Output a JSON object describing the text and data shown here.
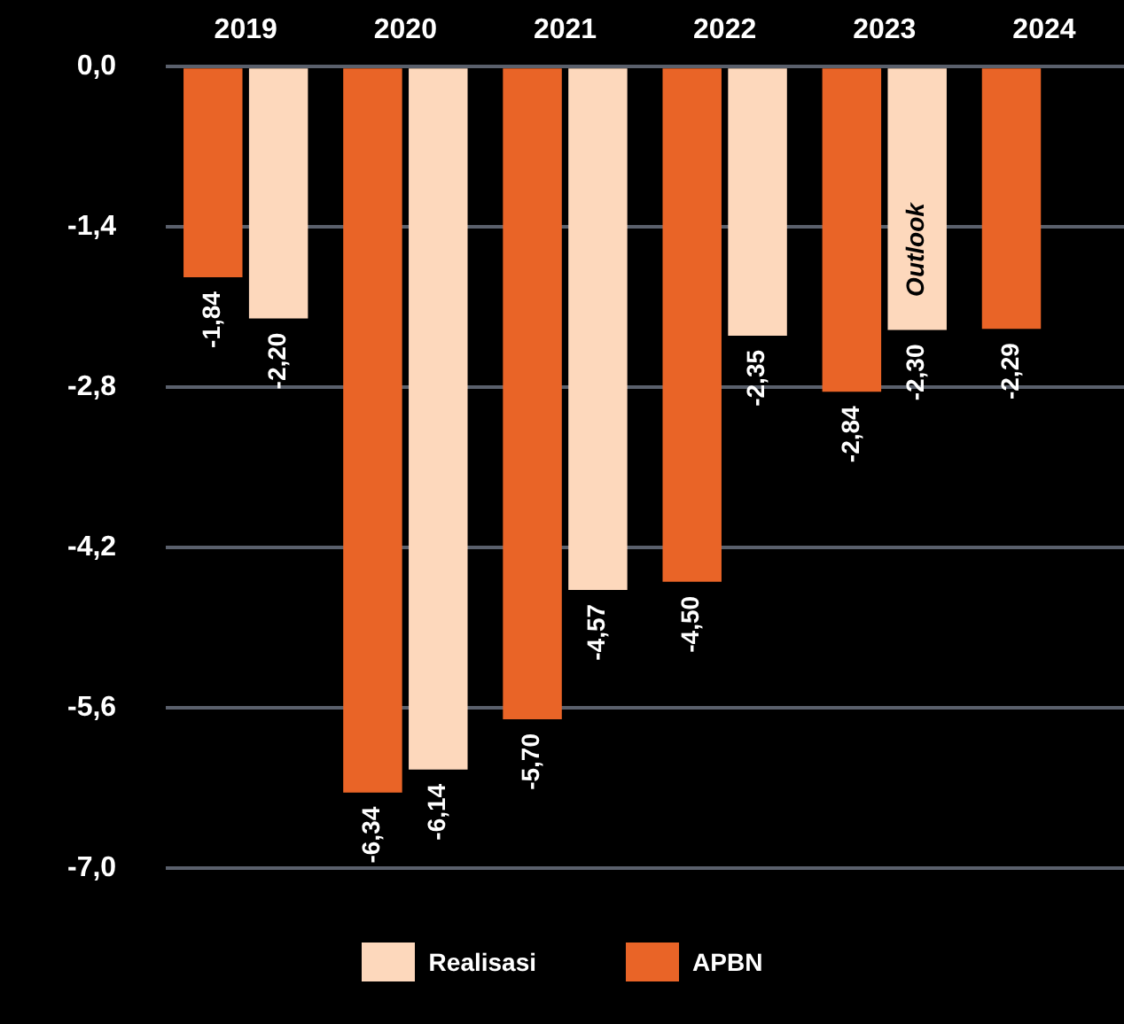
{
  "chart_data": {
    "type": "bar",
    "categories": [
      "2019",
      "2020",
      "2021",
      "2022",
      "2023",
      "2024"
    ],
    "series": [
      {
        "name": "APBN",
        "color": "#e96427",
        "values": [
          -1.84,
          -6.34,
          -5.7,
          -4.5,
          -2.84,
          -2.29
        ],
        "value_labels": [
          "-1,84",
          "-6,34",
          "-5,70",
          "-4,50",
          "-2,84",
          "-2,29"
        ]
      },
      {
        "name": "Realisasi",
        "color": "#fdd8bc",
        "values": [
          -2.2,
          -6.14,
          -4.57,
          -2.35,
          -2.3,
          null
        ],
        "value_labels": [
          "-2,20",
          "-6,14",
          "-4,57",
          "-2,35",
          "-2,30",
          null
        ]
      }
    ],
    "ylim": [
      -7.0,
      0
    ],
    "yticks": [
      {
        "value": 0,
        "label": "0,0"
      },
      {
        "value": -1.4,
        "label": "-1,4"
      },
      {
        "value": -2.8,
        "label": "-2,8"
      },
      {
        "value": -4.2,
        "label": "-4,2"
      },
      {
        "value": -5.6,
        "label": "-5,6"
      },
      {
        "value": -7.0,
        "label": "-7,0"
      }
    ],
    "grid": "y",
    "legend": "bottom",
    "annotations": [
      {
        "text": "Outlook",
        "x": "2023",
        "y": -1.6
      }
    ]
  }
}
